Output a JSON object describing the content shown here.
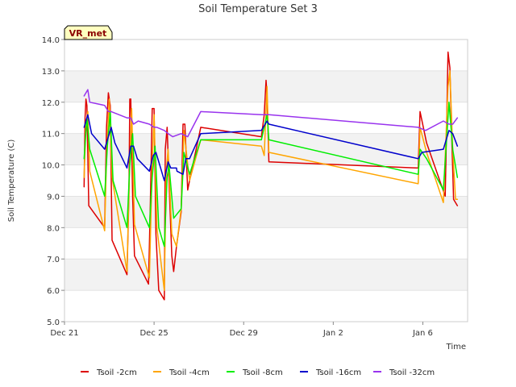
{
  "chart_data": {
    "type": "line",
    "title": "Soil Temperature Set 3",
    "xlabel": "Time",
    "ylabel": "Soil Temperature (C)",
    "badge": "VR_met",
    "ylim": [
      5.0,
      14.0
    ],
    "xlim": [
      "2023-12-21",
      "2024-01-08"
    ],
    "x_ticks": [
      {
        "date": "2023-12-21",
        "label": "Dec 21"
      },
      {
        "date": "2023-12-25",
        "label": "Dec 25"
      },
      {
        "date": "2023-12-29",
        "label": "Dec 29"
      },
      {
        "date": "2024-01-02",
        "label": "Jan 2"
      },
      {
        "date": "2024-01-06",
        "label": "Jan 6"
      }
    ],
    "y_ticks": [
      "5.0",
      "6.0",
      "7.0",
      "8.0",
      "9.0",
      "10.0",
      "11.0",
      "12.0",
      "13.0",
      "14.0"
    ],
    "grid": "horizontal bands",
    "legend_position": "bottom",
    "series": [
      {
        "name": "Tsoil -2cm",
        "color": "#dd0000",
        "points": [
          [
            "2023-12-21 21:00",
            9.3
          ],
          [
            "2023-12-21 22:00",
            11.5
          ],
          [
            "2023-12-21 23:00",
            12.1
          ],
          [
            "2023-12-22 00:00",
            11.9
          ],
          [
            "2023-12-22 02:00",
            8.7
          ],
          [
            "2023-12-22 19:00",
            8.0
          ],
          [
            "2023-12-22 21:00",
            11.2
          ],
          [
            "2023-12-22 23:00",
            12.3
          ],
          [
            "2023-12-23 01:00",
            11.9
          ],
          [
            "2023-12-23 03:00",
            7.6
          ],
          [
            "2023-12-23 19:00",
            6.5
          ],
          [
            "2023-12-23 21:00",
            9.0
          ],
          [
            "2023-12-23 22:00",
            12.1
          ],
          [
            "2023-12-23 23:00",
            12.1
          ],
          [
            "2023-12-24 01:00",
            9.0
          ],
          [
            "2023-12-24 03:00",
            7.1
          ],
          [
            "2023-12-24 18:00",
            6.2
          ],
          [
            "2023-12-24 20:00",
            8.8
          ],
          [
            "2023-12-24 22:00",
            11.8
          ],
          [
            "2023-12-25 00:00",
            11.8
          ],
          [
            "2023-12-25 02:00",
            7.8
          ],
          [
            "2023-12-25 05:00",
            6.0
          ],
          [
            "2023-12-25 07:00",
            5.9
          ],
          [
            "2023-12-25 11:00",
            5.7
          ],
          [
            "2023-12-25 12:00",
            10.5
          ],
          [
            "2023-12-25 14:00",
            11.2
          ],
          [
            "2023-12-25 16:00",
            9.5
          ],
          [
            "2023-12-25 19:00",
            7.1
          ],
          [
            "2023-12-25 21:00",
            6.6
          ],
          [
            "2023-12-26 00:00",
            7.4
          ],
          [
            "2023-12-26 05:00",
            8.5
          ],
          [
            "2023-12-26 07:00",
            11.3
          ],
          [
            "2023-12-26 09:00",
            11.3
          ],
          [
            "2023-12-26 12:00",
            9.2
          ],
          [
            "2023-12-26 14:00",
            9.5
          ],
          [
            "2023-12-27 02:00",
            11.2
          ],
          [
            "2023-12-29 19:00",
            10.9
          ],
          [
            "2023-12-29 22:00",
            11.6
          ],
          [
            "2023-12-30 00:00",
            12.7
          ],
          [
            "2023-12-30 01:00",
            12.2
          ],
          [
            "2023-12-30 03:00",
            10.1
          ],
          [
            "2024-01-05 19:00",
            9.9
          ],
          [
            "2024-01-05 21:00",
            11.7
          ],
          [
            "2024-01-06 04:00",
            10.7
          ],
          [
            "2024-01-07 00:00",
            9.0
          ],
          [
            "2024-01-07 02:00",
            12.0
          ],
          [
            "2024-01-07 03:00",
            13.6
          ],
          [
            "2024-01-07 05:00",
            13.1
          ],
          [
            "2024-01-07 07:00",
            10.9
          ],
          [
            "2024-01-07 09:00",
            8.9
          ],
          [
            "2024-01-07 13:00",
            8.7
          ]
        ]
      },
      {
        "name": "Tsoil -4cm",
        "color": "#ffa500",
        "points": [
          [
            "2023-12-21 21:00",
            9.6
          ],
          [
            "2023-12-21 23:00",
            11.3
          ],
          [
            "2023-12-22 01:00",
            11.7
          ],
          [
            "2023-12-22 03:00",
            9.8
          ],
          [
            "2023-12-22 19:00",
            7.9
          ],
          [
            "2023-12-22 21:00",
            10.2
          ],
          [
            "2023-12-23 00:00",
            12.1
          ],
          [
            "2023-12-23 03:00",
            9.6
          ],
          [
            "2023-12-23 19:00",
            6.6
          ],
          [
            "2023-12-23 21:00",
            9.2
          ],
          [
            "2023-12-24 00:00",
            11.8
          ],
          [
            "2023-12-24 03:00",
            8.1
          ],
          [
            "2023-12-24 19:00",
            6.4
          ],
          [
            "2023-12-24 22:00",
            10.0
          ],
          [
            "2023-12-25 00:00",
            11.6
          ],
          [
            "2023-12-25 03:00",
            8.0
          ],
          [
            "2023-12-25 11:00",
            6.0
          ],
          [
            "2023-12-25 13:00",
            9.8
          ],
          [
            "2023-12-25 15:00",
            10.5
          ],
          [
            "2023-12-25 19:00",
            7.8
          ],
          [
            "2023-12-26 00:00",
            7.4
          ],
          [
            "2023-12-26 05:00",
            8.6
          ],
          [
            "2023-12-26 08:00",
            11.1
          ],
          [
            "2023-12-26 11:00",
            10.3
          ],
          [
            "2023-12-26 14:00",
            9.5
          ],
          [
            "2023-12-27 02:00",
            10.8
          ],
          [
            "2023-12-29 19:00",
            10.6
          ],
          [
            "2023-12-29 22:00",
            10.3
          ],
          [
            "2023-12-30 01:00",
            12.5
          ],
          [
            "2023-12-30 03:00",
            10.4
          ],
          [
            "2024-01-05 19:00",
            9.4
          ],
          [
            "2024-01-05 21:00",
            11.2
          ],
          [
            "2024-01-06 04:00",
            10.4
          ],
          [
            "2024-01-06 22:00",
            8.8
          ],
          [
            "2024-01-07 03:00",
            12.5
          ],
          [
            "2024-01-07 05:00",
            13.0
          ],
          [
            "2024-01-07 08:00",
            10.5
          ],
          [
            "2024-01-07 11:00",
            8.9
          ],
          [
            "2024-01-07 13:00",
            8.9
          ]
        ]
      },
      {
        "name": "Tsoil -8cm",
        "color": "#00ee00",
        "points": [
          [
            "2023-12-21 21:00",
            10.2
          ],
          [
            "2023-12-22 00:00",
            11.5
          ],
          [
            "2023-12-22 03:00",
            10.5
          ],
          [
            "2023-12-22 19:00",
            9.0
          ],
          [
            "2023-12-22 22:00",
            10.6
          ],
          [
            "2023-12-23 01:00",
            11.7
          ],
          [
            "2023-12-23 04:00",
            9.5
          ],
          [
            "2023-12-23 19:00",
            8.0
          ],
          [
            "2023-12-23 22:00",
            10.0
          ],
          [
            "2023-12-24 01:00",
            11.0
          ],
          [
            "2023-12-24 04:00",
            9.0
          ],
          [
            "2023-12-24 19:00",
            8.0
          ],
          [
            "2023-12-24 22:00",
            9.6
          ],
          [
            "2023-12-25 01:00",
            10.6
          ],
          [
            "2023-12-25 05:00",
            8.0
          ],
          [
            "2023-12-25 11:00",
            7.4
          ],
          [
            "2023-12-25 14:00",
            9.6
          ],
          [
            "2023-12-25 16:00",
            10.0
          ],
          [
            "2023-12-25 21:00",
            8.3
          ],
          [
            "2023-12-26 05:00",
            8.6
          ],
          [
            "2023-12-26 08:00",
            10.4
          ],
          [
            "2023-12-26 14:00",
            9.7
          ],
          [
            "2023-12-27 02:00",
            10.8
          ],
          [
            "2023-12-29 19:00",
            10.8
          ],
          [
            "2023-12-30 01:00",
            11.6
          ],
          [
            "2023-12-30 03:00",
            10.8
          ],
          [
            "2024-01-05 19:00",
            9.7
          ],
          [
            "2024-01-05 21:00",
            10.5
          ],
          [
            "2024-01-06 04:00",
            10.2
          ],
          [
            "2024-01-06 22:00",
            9.2
          ],
          [
            "2024-01-07 04:00",
            12.0
          ],
          [
            "2024-01-07 08:00",
            10.5
          ],
          [
            "2024-01-07 13:00",
            9.6
          ]
        ]
      },
      {
        "name": "Tsoil -16cm",
        "color": "#0000cc",
        "points": [
          [
            "2023-12-21 21:00",
            11.2
          ],
          [
            "2023-12-22 01:00",
            11.6
          ],
          [
            "2023-12-22 05:00",
            11.0
          ],
          [
            "2023-12-22 19:00",
            10.5
          ],
          [
            "2023-12-22 23:00",
            10.9
          ],
          [
            "2023-12-23 02:00",
            11.2
          ],
          [
            "2023-12-23 06:00",
            10.7
          ],
          [
            "2023-12-23 19:00",
            9.9
          ],
          [
            "2023-12-23 23:00",
            10.6
          ],
          [
            "2023-12-24 02:00",
            10.6
          ],
          [
            "2023-12-24 06:00",
            10.2
          ],
          [
            "2023-12-24 19:00",
            9.8
          ],
          [
            "2023-12-24 23:00",
            10.3
          ],
          [
            "2023-12-25 02:00",
            10.4
          ],
          [
            "2023-12-25 06:00",
            10.0
          ],
          [
            "2023-12-25 11:00",
            9.5
          ],
          [
            "2023-12-25 15:00",
            10.1
          ],
          [
            "2023-12-25 18:00",
            9.9
          ],
          [
            "2023-12-26 00:00",
            9.9
          ],
          [
            "2023-12-26 00:30",
            9.8
          ],
          [
            "2023-12-26 07:00",
            9.7
          ],
          [
            "2023-12-26 10:00",
            10.2
          ],
          [
            "2023-12-26 14:00",
            10.2
          ],
          [
            "2023-12-27 02:00",
            11.0
          ],
          [
            "2023-12-29 19:00",
            11.1
          ],
          [
            "2023-12-30 01:00",
            11.4
          ],
          [
            "2023-12-30 03:00",
            11.3
          ],
          [
            "2024-01-05 19:00",
            10.2
          ],
          [
            "2024-01-05 23:00",
            10.4
          ],
          [
            "2024-01-06 22:00",
            10.5
          ],
          [
            "2024-01-07 04:00",
            11.1
          ],
          [
            "2024-01-07 08:00",
            11.0
          ],
          [
            "2024-01-07 13:00",
            10.6
          ]
        ]
      },
      {
        "name": "Tsoil -32cm",
        "color": "#9933ee",
        "points": [
          [
            "2023-12-21 21:00",
            12.2
          ],
          [
            "2023-12-22 01:00",
            12.4
          ],
          [
            "2023-12-22 03:00",
            12.0
          ],
          [
            "2023-12-22 19:00",
            11.9
          ],
          [
            "2023-12-22 23:00",
            11.7
          ],
          [
            "2023-12-23 02:00",
            11.7
          ],
          [
            "2023-12-23 19:00",
            11.5
          ],
          [
            "2023-12-23 23:00",
            11.5
          ],
          [
            "2023-12-24 02:00",
            11.3
          ],
          [
            "2023-12-24 07:00",
            11.4
          ],
          [
            "2023-12-24 19:00",
            11.3
          ],
          [
            "2023-12-25 00:00",
            11.2
          ],
          [
            "2023-12-25 03:00",
            11.2
          ],
          [
            "2023-12-25 11:00",
            11.1
          ],
          [
            "2023-12-25 15:00",
            11.0
          ],
          [
            "2023-12-25 20:00",
            10.9
          ],
          [
            "2023-12-26 05:00",
            11.0
          ],
          [
            "2023-12-26 12:00",
            10.9
          ],
          [
            "2023-12-27 02:00",
            11.7
          ],
          [
            "2023-12-29 19:00",
            11.6
          ],
          [
            "2023-12-30 03:00",
            11.6
          ],
          [
            "2024-01-05 19:00",
            11.2
          ],
          [
            "2024-01-06 03:00",
            11.1
          ],
          [
            "2024-01-06 22:00",
            11.4
          ],
          [
            "2024-01-07 04:00",
            11.3
          ],
          [
            "2024-01-07 08:00",
            11.3
          ],
          [
            "2024-01-07 13:00",
            11.5
          ]
        ]
      }
    ]
  }
}
